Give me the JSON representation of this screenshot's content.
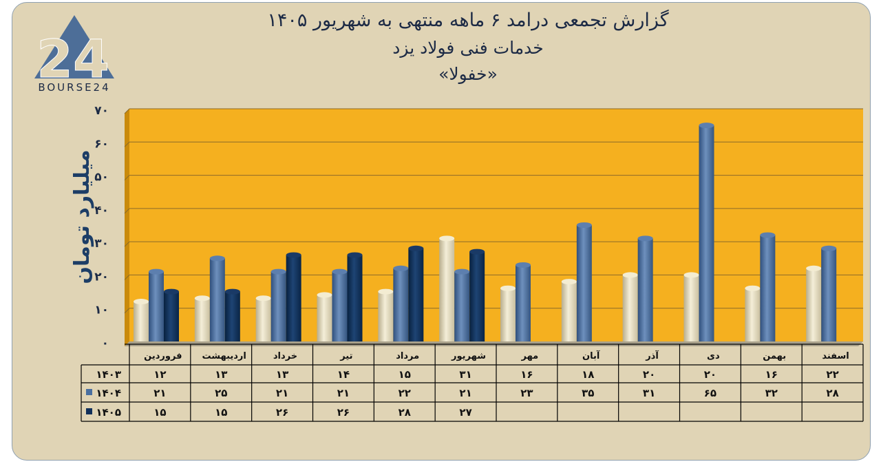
{
  "header": {
    "title_line1": "گزارش تجمعی درامد ۶ ماهه منتهی به شهریور ۱۴۰۵",
    "title_line2": "خدمات فنی فولاد یزد",
    "title_line3": "«خفولا»"
  },
  "logo": {
    "text": "BOURSE24",
    "mark": "24"
  },
  "chart_data": {
    "type": "bar",
    "title": "گزارش تجمعی درامد ۶ ماهه منتهی به شهریور ۱۴۰۵",
    "ylabel": "میلیارد تومان",
    "ylim": [
      0,
      70
    ],
    "yticks": [
      "۰",
      "۱۰",
      "۲۰",
      "۳۰",
      "۴۰",
      "۵۰",
      "۶۰",
      "۷۰"
    ],
    "ytick_values": [
      0,
      10,
      20,
      30,
      40,
      50,
      60,
      70
    ],
    "categories": [
      "فروردین",
      "اردیبهشت",
      "خرداد",
      "تیر",
      "مرداد",
      "شهریور",
      "مهر",
      "آبان",
      "آذر",
      "دی",
      "بهمن",
      "اسفند"
    ],
    "series": [
      {
        "name": "۱۴۰۳",
        "color": "#e8dfc2",
        "values": [
          12,
          13,
          13,
          14,
          15,
          31,
          16,
          18,
          20,
          20,
          16,
          22
        ],
        "labels": [
          "۱۲",
          "۱۳",
          "۱۳",
          "۱۴",
          "۱۵",
          "۳۱",
          "۱۶",
          "۱۸",
          "۲۰",
          "۲۰",
          "۱۶",
          "۲۲"
        ]
      },
      {
        "name": "۱۴۰۴",
        "color": "#4a6fa0",
        "values": [
          21,
          25,
          21,
          21,
          22,
          21,
          23,
          35,
          31,
          65,
          32,
          28
        ],
        "labels": [
          "۲۱",
          "۲۵",
          "۲۱",
          "۲۱",
          "۲۲",
          "۲۱",
          "۲۳",
          "۳۵",
          "۳۱",
          "۶۵",
          "۳۲",
          "۲۸"
        ]
      },
      {
        "name": "۱۴۰۵",
        "color": "#12305a",
        "values": [
          15,
          15,
          26,
          26,
          28,
          27,
          null,
          null,
          null,
          null,
          null,
          null
        ],
        "labels": [
          "۱۵",
          "۱۵",
          "۲۶",
          "۲۶",
          "۲۸",
          "۲۷",
          "",
          "",
          "",
          "",
          "",
          ""
        ]
      }
    ],
    "grid": true,
    "background": "#f5b01f",
    "legend": "table-bottom"
  }
}
